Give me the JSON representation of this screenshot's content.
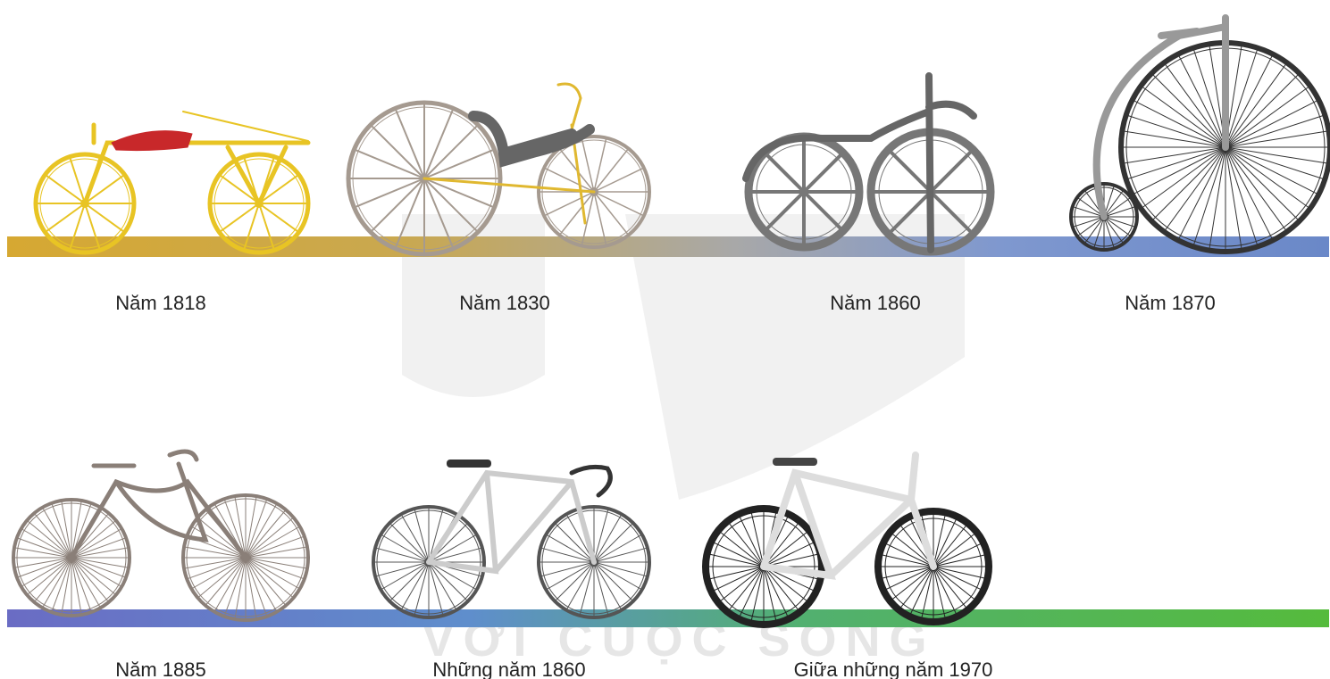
{
  "labels": [
    "Năm 1818",
    "Năm 1830",
    "Năm 1860",
    "Năm 1870",
    "Năm 1885",
    "Những năm 1860",
    "Giữa những năm 1970"
  ],
  "watermark": "VỚI CUỘC SỐNG"
}
